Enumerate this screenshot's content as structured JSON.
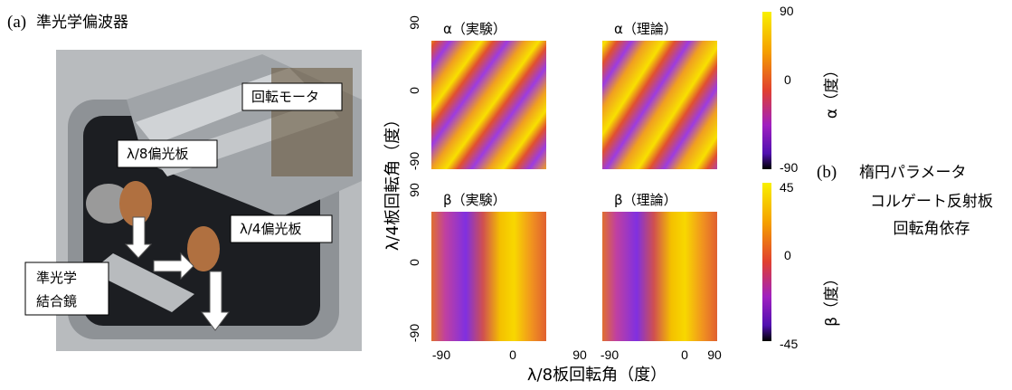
{
  "panel_a": {
    "label": "(a)",
    "title": "準光学偏波器",
    "callouts": {
      "motor": "回転モータ",
      "eighth_plate": "λ/8偏光板",
      "quarter_plate": "λ/4偏光板",
      "mirror": [
        "準光学",
        "結合鏡"
      ]
    }
  },
  "panel_b": {
    "label": "(b)",
    "caption_lines": [
      "楕円パラメータ",
      "コルゲート反射板",
      "回転角依存"
    ],
    "maps": [
      {
        "title": "α（実験）"
      },
      {
        "title": "α（理論）"
      },
      {
        "title": "β（実験）"
      },
      {
        "title": "β（理論）"
      }
    ],
    "x_label": "λ/8板回転角（度）",
    "y_label": "λ/4板回転角（度）",
    "x_ticks": [
      -90,
      0,
      90
    ],
    "y_ticks": [
      90,
      0,
      -90
    ],
    "colorbars": [
      {
        "label": "α（度）",
        "ticks": [
          90,
          0,
          -90
        ]
      },
      {
        "label": "β（度）",
        "ticks": [
          45,
          0,
          -45
        ]
      }
    ]
  }
}
